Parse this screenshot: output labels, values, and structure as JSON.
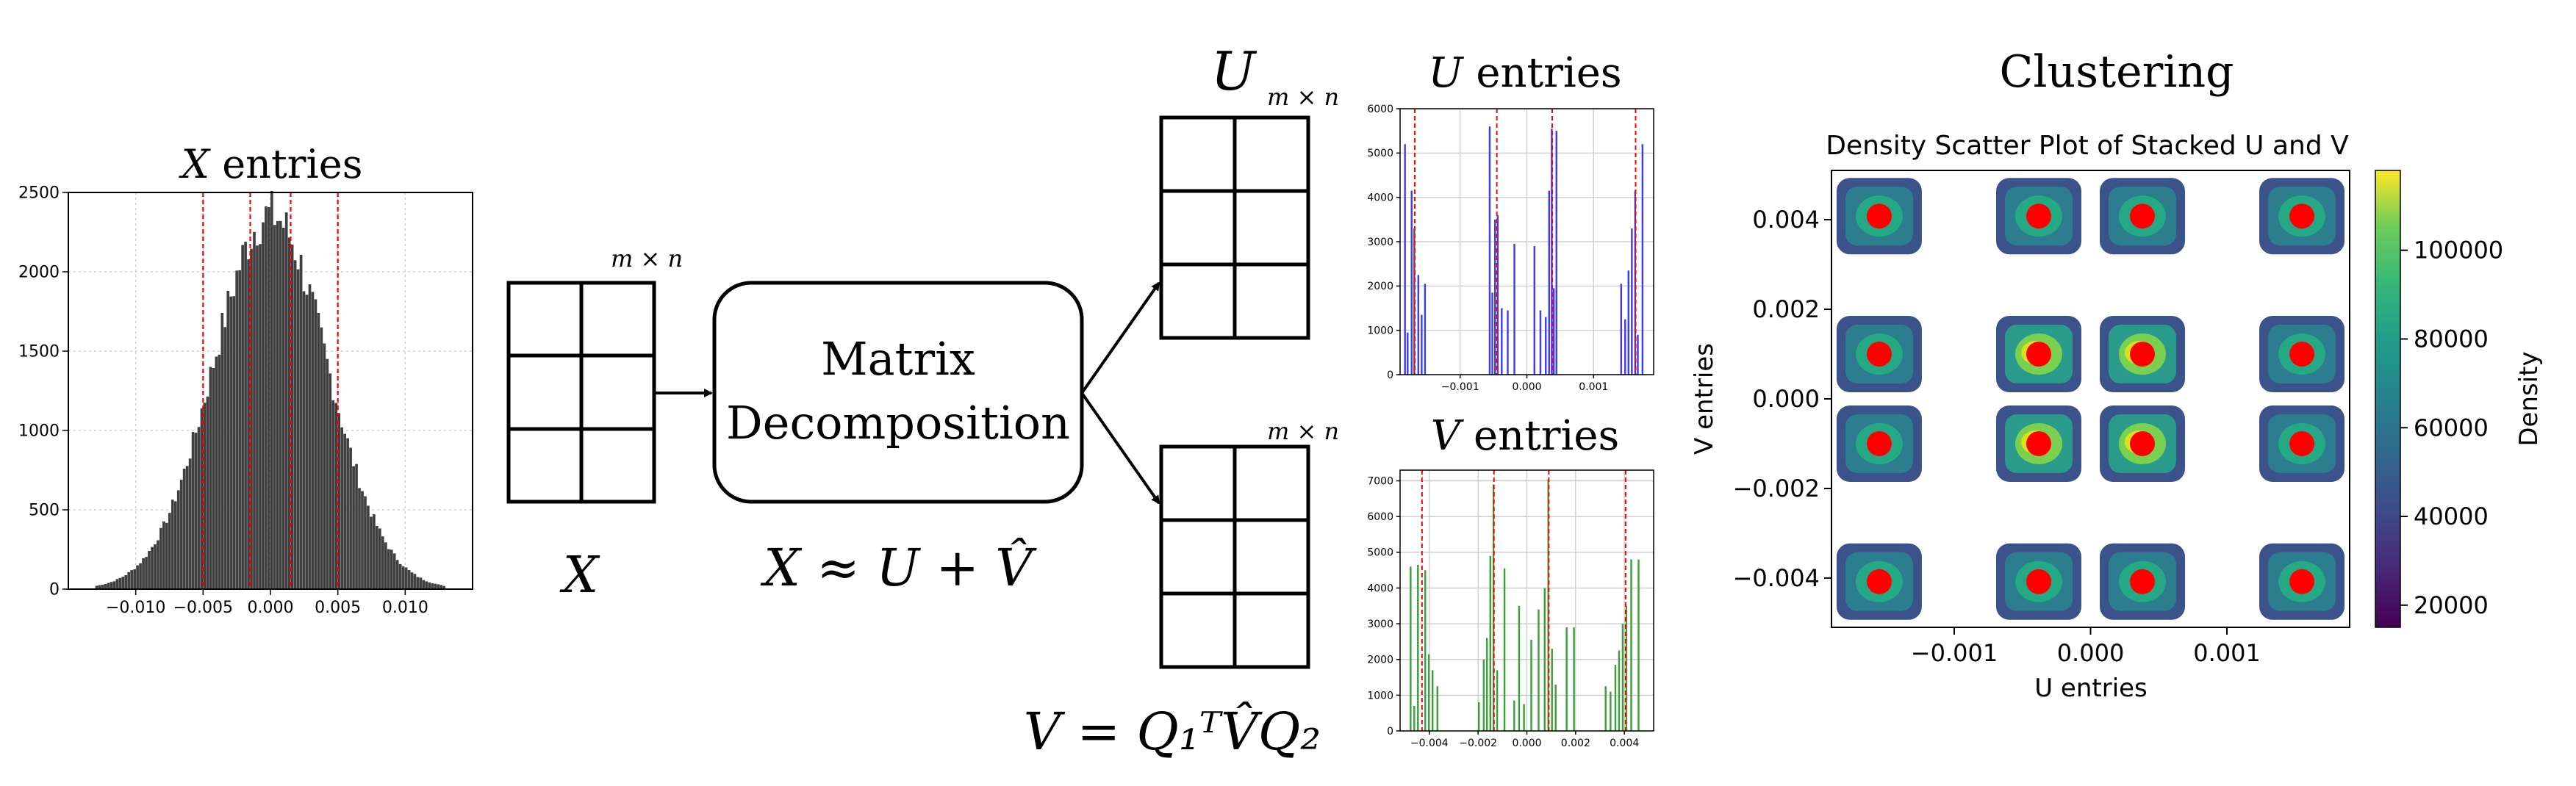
{
  "titles": {
    "x_title": "X",
    "x_title_suffix": " entries",
    "u_big": "U",
    "u_entries_title": "U",
    "u_entries_suffix": " entries",
    "v_entries_title": "V",
    "v_entries_suffix": " entries",
    "clustering": "Clustering"
  },
  "labels": {
    "mxn": "m × n",
    "x_matrix": "X",
    "decomp_line1": "Matrix",
    "decomp_line2": "Decomposition",
    "approx_eq": "X ≈ U + V̂",
    "v_eq": "V = Q₁ᵀV̂Q₂"
  },
  "colors": {
    "x_hist": "#3f3f3f",
    "u_hist": "#3d3df0",
    "v_hist": "#3c9e3c",
    "centroid": "#ff0000",
    "quant_line": "#ff0000"
  },
  "chart_data": [
    {
      "type": "bar",
      "id": "x_hist",
      "title": "X entries",
      "xlabel": "",
      "ylabel": "",
      "xlim": [
        -0.015,
        0.015
      ],
      "ylim": [
        0,
        2500
      ],
      "xticks": [
        "−0.010",
        "−0.005",
        "0.000",
        "0.005",
        "0.010"
      ],
      "xtick_values": [
        -0.01,
        -0.005,
        0.0,
        0.005,
        0.01
      ],
      "yticks": [
        "0",
        "500",
        "1000",
        "1500",
        "2000",
        "2500"
      ],
      "ytick_values": [
        0,
        500,
        1000,
        1500,
        2000,
        2500
      ],
      "grid": true,
      "distribution": {
        "shape": "gaussian",
        "mean": 0.0,
        "std": 0.0042,
        "peak": 2360,
        "range": [
          -0.013,
          0.013
        ]
      },
      "vlines": [
        -0.005,
        -0.0015,
        0.0015,
        0.005
      ]
    },
    {
      "type": "bar",
      "id": "u_hist",
      "title": "U entries",
      "xlim": [
        -0.0019,
        0.0019
      ],
      "ylim": [
        0,
        6000
      ],
      "xticks": [
        "−0.001",
        "0.000",
        "0.001"
      ],
      "xtick_values": [
        -0.001,
        0.0,
        0.001
      ],
      "yticks": [
        "0",
        "1000",
        "2000",
        "3000",
        "4000",
        "5000",
        "6000"
      ],
      "ytick_values": [
        0,
        1000,
        2000,
        3000,
        4000,
        5000,
        6000
      ],
      "grid": true,
      "bars": [
        [
          -0.00182,
          5200
        ],
        [
          -0.00178,
          950
        ],
        [
          -0.00172,
          4150
        ],
        [
          -0.00168,
          3300
        ],
        [
          -0.00162,
          2250
        ],
        [
          -0.00157,
          1350
        ],
        [
          -0.00152,
          2050
        ],
        [
          -0.00055,
          5600
        ],
        [
          -0.00051,
          1850
        ],
        [
          -0.00047,
          3500
        ],
        [
          -0.00043,
          3600
        ],
        [
          -0.00037,
          1500
        ],
        [
          -0.00028,
          1450
        ],
        [
          -0.00018,
          2950
        ],
        [
          0.00012,
          2900
        ],
        [
          0.00021,
          1450
        ],
        [
          0.00029,
          1300
        ],
        [
          0.00034,
          4150
        ],
        [
          0.00038,
          5550
        ],
        [
          0.00041,
          1950
        ],
        [
          0.00045,
          5500
        ],
        [
          0.00142,
          2050
        ],
        [
          0.00148,
          1250
        ],
        [
          0.00153,
          2350
        ],
        [
          0.00158,
          3300
        ],
        [
          0.00163,
          4150
        ],
        [
          0.00167,
          900
        ],
        [
          0.00174,
          5200
        ]
      ],
      "vlines": [
        -0.00168,
        -0.00045,
        0.00038,
        0.00163
      ]
    },
    {
      "type": "bar",
      "id": "v_hist",
      "title": "V entries",
      "xlim": [
        -0.0052,
        0.0052
      ],
      "ylim": [
        0,
        7300
      ],
      "xticks": [
        "−0.004",
        "−0.002",
        "0.000",
        "0.002",
        "0.004"
      ],
      "xtick_values": [
        -0.004,
        -0.002,
        0.0,
        0.002,
        0.004
      ],
      "yticks": [
        "0",
        "1000",
        "2000",
        "3000",
        "4000",
        "5000",
        "6000",
        "7000"
      ],
      "ytick_values": [
        0,
        1000,
        2000,
        3000,
        4000,
        5000,
        6000,
        7000
      ],
      "grid": true,
      "bars": [
        [
          -0.00475,
          4600
        ],
        [
          -0.0046,
          700
        ],
        [
          -0.00445,
          4650
        ],
        [
          -0.00415,
          4500
        ],
        [
          -0.004,
          2150
        ],
        [
          -0.00385,
          1700
        ],
        [
          -0.00365,
          1250
        ],
        [
          -0.00195,
          800
        ],
        [
          -0.00175,
          2000
        ],
        [
          -0.00162,
          2600
        ],
        [
          -0.00148,
          4900
        ],
        [
          -0.00135,
          6900
        ],
        [
          -0.0012,
          1700
        ],
        [
          -0.0009,
          4550
        ],
        [
          -0.0005,
          850
        ],
        [
          -0.0003,
          3500
        ],
        [
          -0.0001,
          750
        ],
        [
          0.0002,
          2550
        ],
        [
          0.0005,
          3400
        ],
        [
          0.00075,
          4000
        ],
        [
          0.0009,
          7050
        ],
        [
          0.00105,
          2300
        ],
        [
          0.0012,
          1300
        ],
        [
          0.00165,
          2900
        ],
        [
          0.00195,
          2900
        ],
        [
          0.00325,
          1250
        ],
        [
          0.00345,
          1100
        ],
        [
          0.00365,
          1850
        ],
        [
          0.0038,
          2250
        ],
        [
          0.00395,
          3000
        ],
        [
          0.0041,
          3500
        ],
        [
          0.0043,
          4800
        ],
        [
          0.0046,
          4800
        ]
      ],
      "vlines": [
        -0.0043,
        -0.00135,
        0.0009,
        0.00405
      ]
    },
    {
      "type": "scatter",
      "id": "density_scatter",
      "title": "Density Scatter Plot of Stacked U and V",
      "xlabel": "U entries",
      "ylabel": "V entries",
      "colorbar_label": "Density",
      "xlim": [
        -0.0019,
        0.0019
      ],
      "ylim": [
        -0.0051,
        0.0051
      ],
      "xticks": [
        "−0.001",
        "0.000",
        "0.001"
      ],
      "xtick_values": [
        -0.001,
        0.0,
        0.001
      ],
      "yticks": [
        "0.004",
        "0.002",
        "0.000",
        "−0.002",
        "−0.004"
      ],
      "ytick_values": [
        0.004,
        0.002,
        0.0,
        -0.002,
        -0.004
      ],
      "colorbar_range": [
        15000,
        118000
      ],
      "colorbar_ticks": [
        "20000",
        "40000",
        "60000",
        "80000",
        "100000"
      ],
      "colorbar_tick_values": [
        20000,
        40000,
        60000,
        80000,
        100000
      ],
      "centroids_x": [
        -0.00155,
        -0.00038,
        0.00038,
        0.00155
      ],
      "centroids_y": [
        0.00408,
        0.001,
        -0.001,
        -0.00408
      ]
    }
  ]
}
